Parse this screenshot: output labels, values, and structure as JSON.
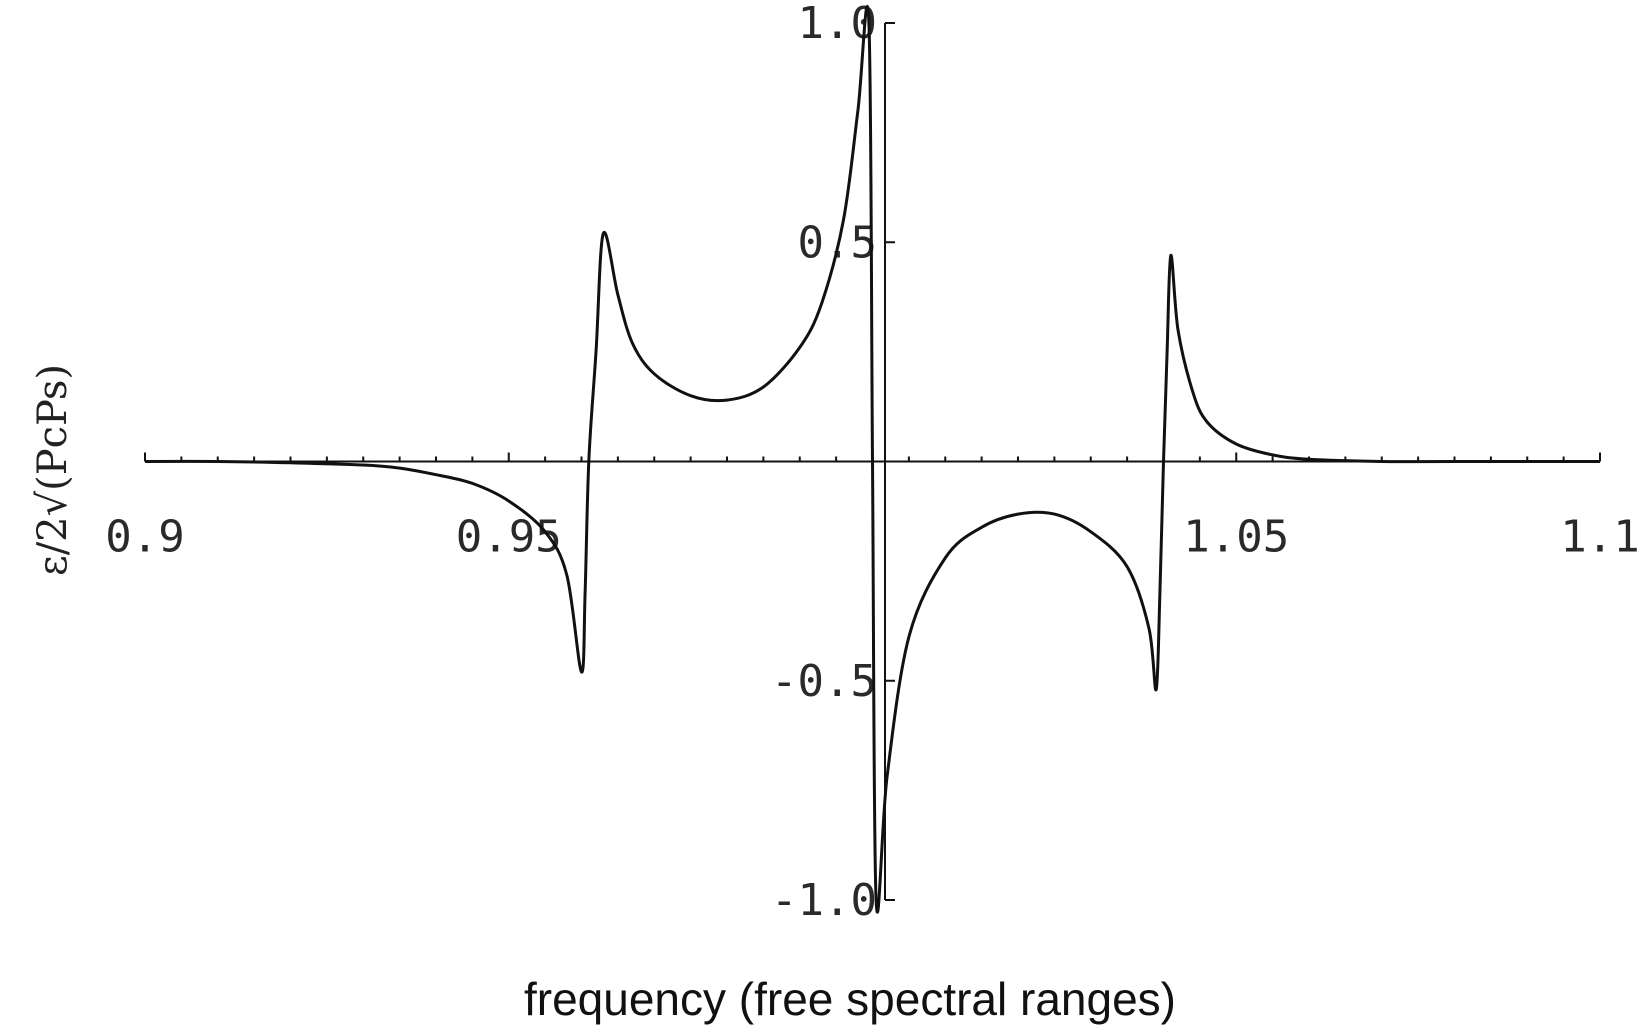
{
  "chart_data": {
    "type": "line",
    "title": "",
    "xlabel": "frequency (free spectral ranges)",
    "ylabel": "ε/2√(PcPs)",
    "xlim": [
      0.9,
      1.1
    ],
    "ylim": [
      -1.0,
      1.0
    ],
    "grid": false,
    "x_ticks": [
      0.9,
      0.95,
      1.05,
      1.1
    ],
    "x_tick_labels": [
      "0.9",
      "0.95",
      "1.05",
      "1.1"
    ],
    "y_ticks": [
      1.0,
      0.5,
      -0.5,
      -1.0
    ],
    "y_tick_labels": [
      "1.0",
      "0.5",
      "-0.5",
      "-1.0"
    ],
    "series": [
      {
        "x": [
          0.9,
          0.91,
          0.92,
          0.93,
          0.935,
          0.94,
          0.945,
          0.95,
          0.955,
          0.958,
          0.96,
          0.9605,
          0.961,
          0.962,
          0.963,
          0.965,
          0.967,
          0.97,
          0.975,
          0.98,
          0.985,
          0.99,
          0.993,
          0.996,
          0.998,
          0.9995,
          1.0,
          1.0005,
          1.002,
          1.005,
          1.01,
          1.015,
          1.02,
          1.025,
          1.03,
          1.035,
          1.038,
          1.039,
          1.0395,
          1.04,
          1.0405,
          1.041,
          1.042,
          1.044,
          1.046,
          1.05,
          1.055,
          1.06,
          1.07,
          1.08,
          1.1
        ],
        "y": [
          0.0,
          0.0,
          -0.003,
          -0.008,
          -0.015,
          -0.03,
          -0.05,
          -0.09,
          -0.16,
          -0.26,
          -0.48,
          -0.3,
          0.0,
          0.25,
          0.52,
          0.38,
          0.27,
          0.2,
          0.15,
          0.14,
          0.17,
          0.26,
          0.36,
          0.55,
          0.8,
          1.0,
          0.0,
          -1.0,
          -0.72,
          -0.4,
          -0.22,
          -0.15,
          -0.12,
          -0.12,
          -0.16,
          -0.24,
          -0.38,
          -0.52,
          -0.3,
          0.0,
          0.25,
          0.47,
          0.3,
          0.16,
          0.09,
          0.04,
          0.015,
          0.005,
          0.0,
          0.0,
          0.0
        ]
      }
    ]
  }
}
